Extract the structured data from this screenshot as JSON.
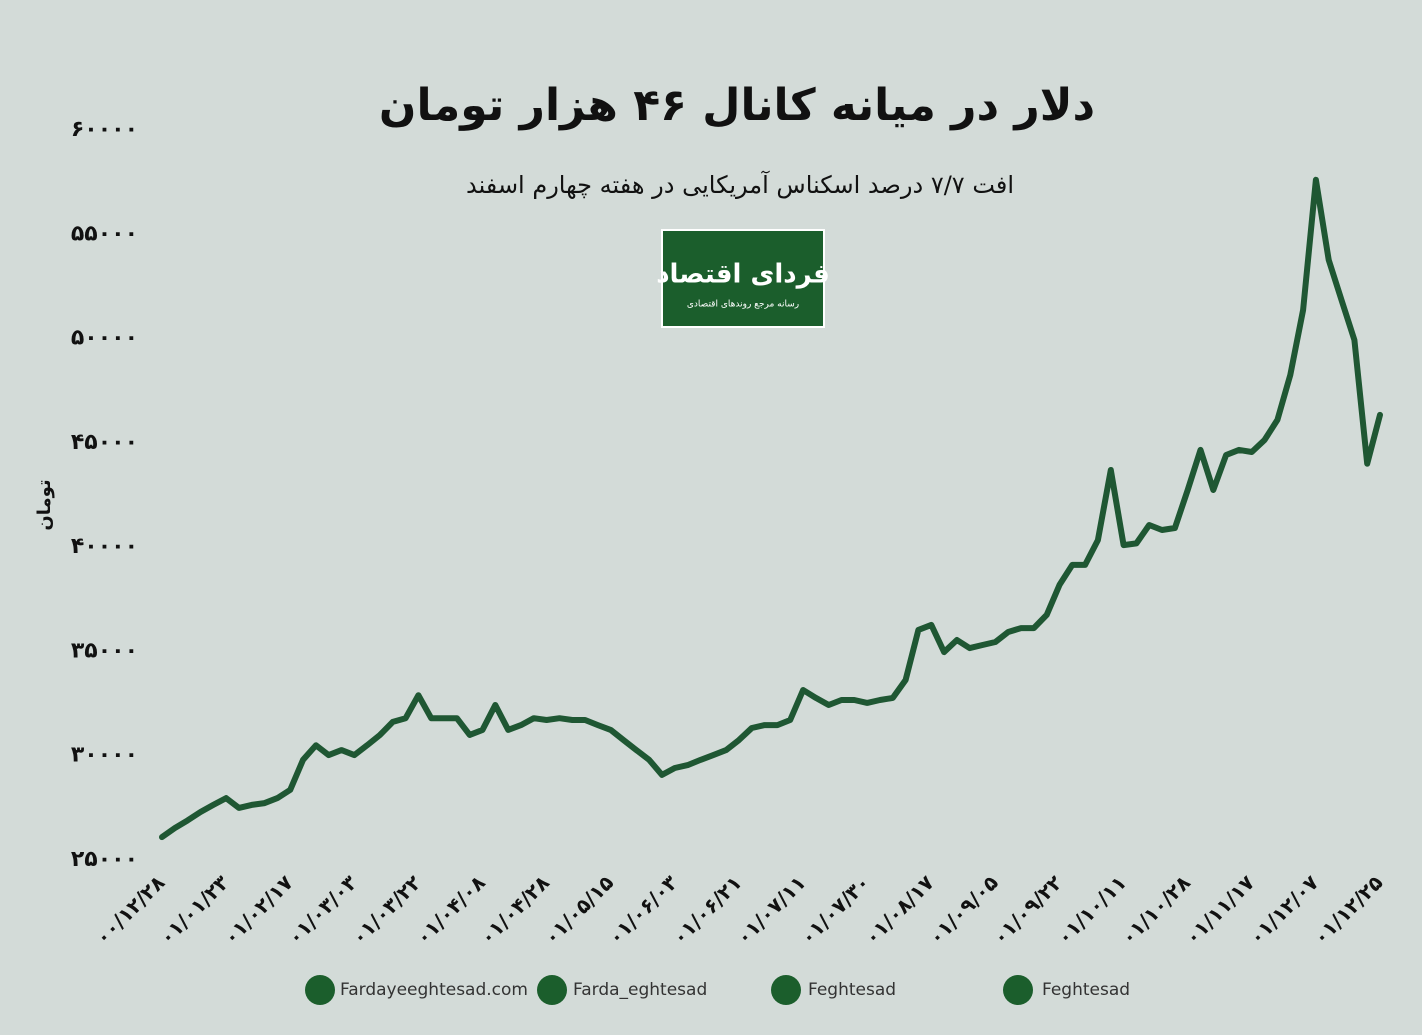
{
  "chart_data": {
    "type": "line",
    "title": "دلار در میانه کانال ۴۶ هزار تومان",
    "subtitle": "افت ۷/۷ درصد اسکناس آمریکایی در هفته چهارم اسفند",
    "y_label": "تومان",
    "color": "#1f5733",
    "categories": [
      "۰۰/۱۲/۲۸",
      null,
      null,
      null,
      null,
      "۰۱/۰۱/۲۳",
      null,
      null,
      null,
      null,
      "۰۱/۰۲/۱۷",
      null,
      null,
      null,
      null,
      "۰۱/۰۳/۰۳",
      null,
      null,
      null,
      null,
      "۰۱/۰۳/۲۲",
      null,
      null,
      null,
      null,
      "۰۱/۰۴/۰۸",
      null,
      null,
      null,
      null,
      "۰۱/۰۴/۲۸",
      null,
      null,
      null,
      null,
      "۰۱/۰۵/۱۵",
      null,
      null,
      null,
      null,
      "۰۱/۰۶/۰۳",
      null,
      null,
      null,
      null,
      "۰۱/۰۶/۲۱",
      null,
      null,
      null,
      null,
      "۰۱/۰۷/۱۱",
      null,
      null,
      null,
      null,
      "۰۱/۰۷/۳۰",
      null,
      null,
      null,
      null,
      "۰۱/۰۸/۱۷",
      null,
      null,
      null,
      null,
      "۰۱/۰۹/۰۵",
      null,
      null,
      null,
      null,
      "۰۱/۰۹/۲۲",
      null,
      null,
      null,
      null,
      "۰۱/۱۰/۱۱",
      null,
      null,
      null,
      null,
      "۰۱/۱۰/۲۸",
      null,
      null,
      null,
      null,
      "۰۱/۱۱/۱۷",
      null,
      null,
      null,
      null,
      "۰۱/۱۲/۰۷",
      null,
      null,
      null,
      null,
      "۰۱/۱۲/۲۵"
    ],
    "values": [
      26100,
      26530,
      26900,
      27300,
      27640,
      27970,
      27500,
      27640,
      27730,
      27970,
      28360,
      29800,
      30500,
      30030,
      30270,
      30030,
      30500,
      31000,
      31620,
      31800,
      32900,
      31800,
      31800,
      31800,
      31000,
      31240,
      32430,
      31240,
      31470,
      31800,
      31710,
      31800,
      31710,
      31710,
      31470,
      31240,
      30750,
      30270,
      29800,
      29080,
      29410,
      29550,
      29800,
      30030,
      30270,
      30750,
      31330,
      31470,
      31470,
      31710,
      33150,
      32770,
      32430,
      32670,
      32670,
      32530,
      32670,
      32770,
      33630,
      36030,
      36270,
      34970,
      35550,
      35160,
      35310,
      35450,
      35930,
      36120,
      36120,
      36750,
      38190,
      39150,
      39150,
      40340,
      43700,
      40100,
      40180,
      41060,
      40820,
      40920,
      42740,
      44660,
      42740,
      44420,
      44660,
      44560,
      45140,
      46100,
      48260,
      51370,
      57610,
      53770,
      51850,
      49930,
      44000,
      46340
    ],
    "ylim": [
      25000,
      60000
    ],
    "yticks": [
      {
        "value": 25000,
        "label": "۲۵۰۰۰"
      },
      {
        "value": 30000,
        "label": "۳۰۰۰۰"
      },
      {
        "value": 35000,
        "label": "۳۵۰۰۰"
      },
      {
        "value": 40000,
        "label": "۴۰۰۰۰"
      },
      {
        "value": 45000,
        "label": "۴۵۰۰۰"
      },
      {
        "value": 50000,
        "label": "۵۰۰۰۰"
      },
      {
        "value": 55000,
        "label": "۵۵۰۰۰"
      },
      {
        "value": 60000,
        "label": "۶۰۰۰۰"
      }
    ]
  },
  "logo": {
    "name": "فردای اقتصاد",
    "tagline": "رسانه مرجع روندهای اقتصادی"
  },
  "footer": [
    "Fardayeeghtesad.com",
    "Farda_eghtesad",
    "Feghtesad",
    "Feghtesad"
  ]
}
